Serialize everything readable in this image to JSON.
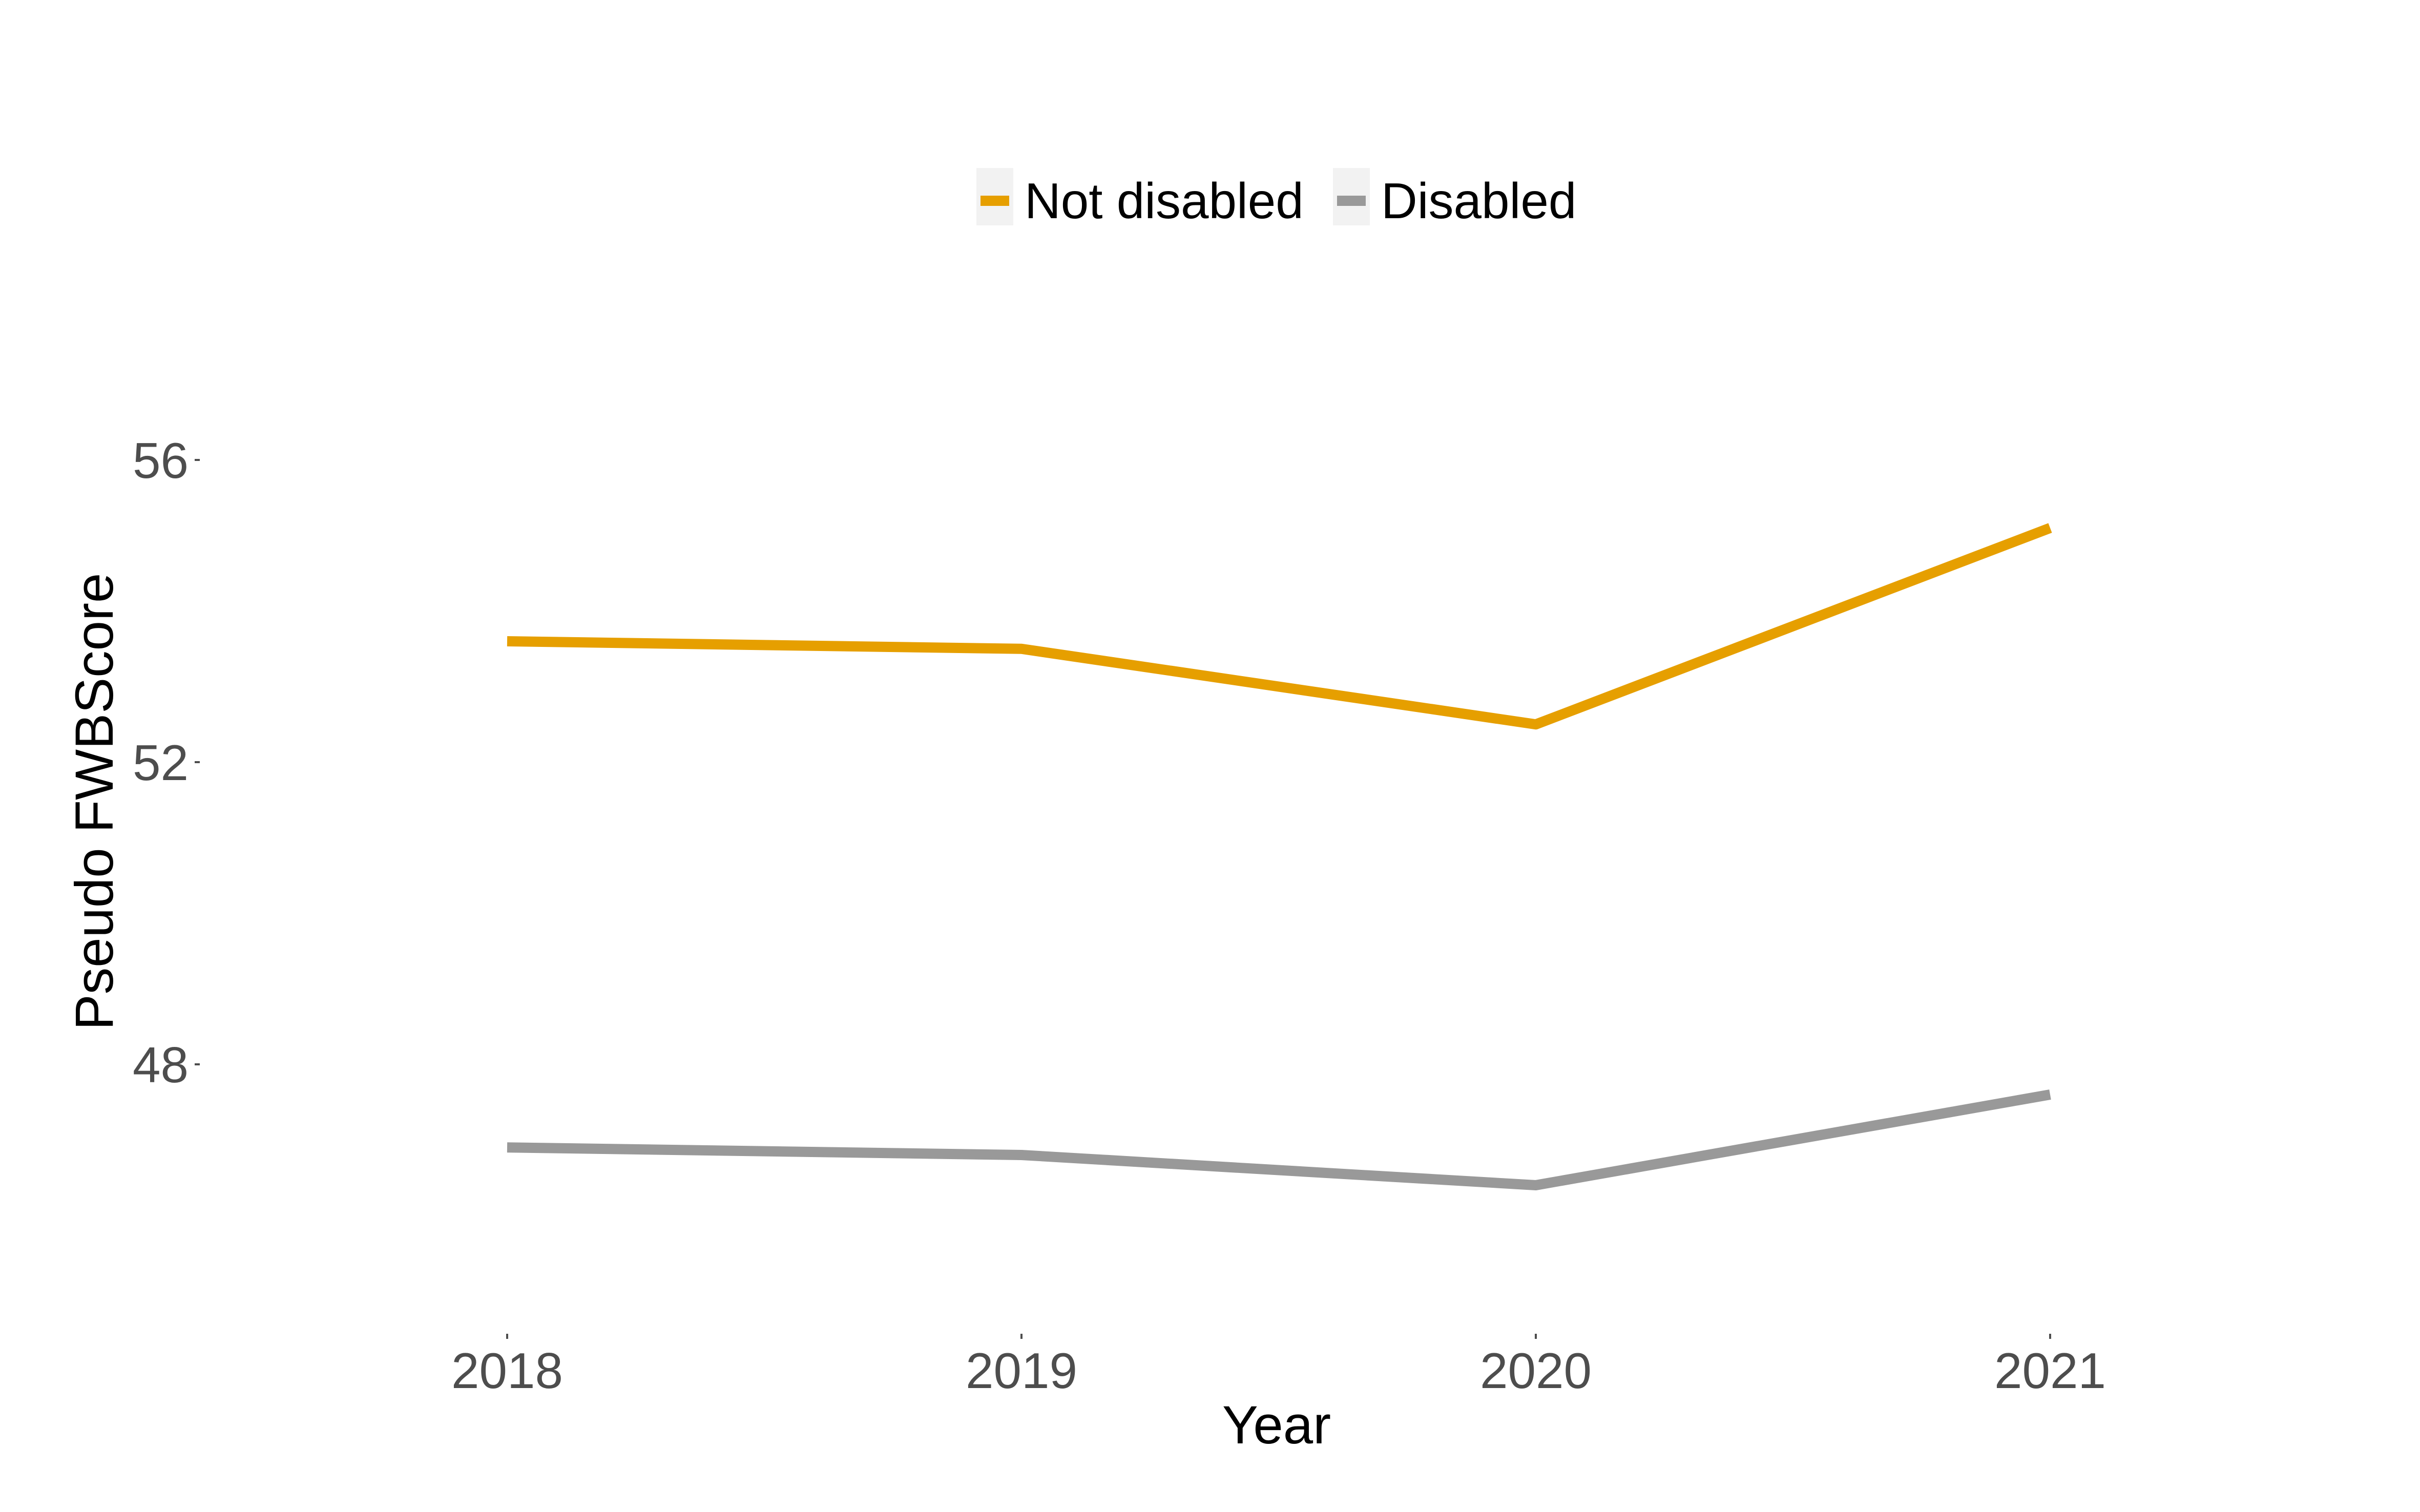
{
  "chart_data": {
    "type": "line",
    "xlabel": "Year",
    "ylabel": "Pseudo FWBScore",
    "categories": [
      "2018",
      "2019",
      "2020",
      "2021"
    ],
    "series": [
      {
        "name": "Not disabled",
        "color": "#E69F00",
        "values": [
          53.6,
          53.5,
          52.5,
          55.1
        ]
      },
      {
        "name": "Disabled",
        "color": "#999999",
        "values": [
          46.9,
          46.8,
          46.4,
          47.6
        ]
      }
    ],
    "y_ticks": [
      48,
      52,
      56
    ],
    "y_tick_labels": [
      "48",
      "52",
      "56"
    ],
    "ylim": [
      45.2,
      57.5
    ],
    "grid": false,
    "legend_position": "top"
  }
}
